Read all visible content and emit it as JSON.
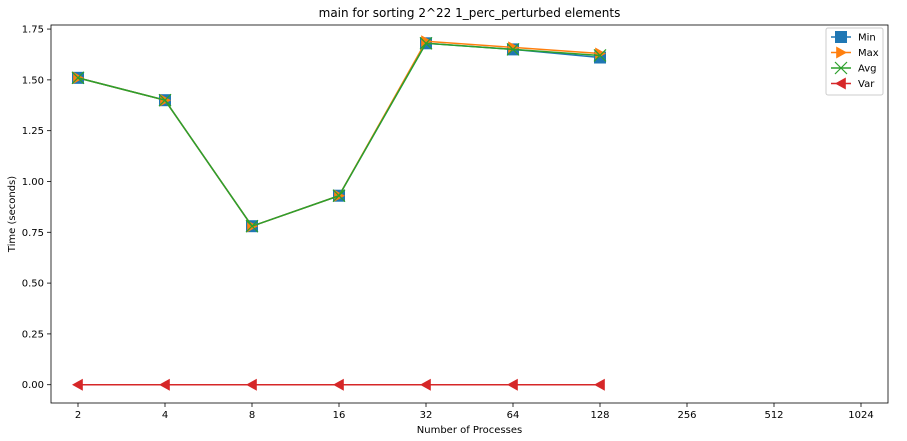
{
  "chart_data": {
    "type": "line",
    "title": "main for sorting 2^22 1_perc_perturbed elements",
    "xlabel": "Number of Processes",
    "ylabel": "Time (seconds)",
    "x_scale": "log2",
    "categories": [
      "2",
      "4",
      "8",
      "16",
      "32",
      "64",
      "128",
      "256",
      "512",
      "1024"
    ],
    "x": [
      2,
      4,
      8,
      16,
      32,
      64,
      128
    ],
    "ylim": [
      -0.09,
      1.77
    ],
    "yticks": [
      "0.00",
      "0.25",
      "0.50",
      "0.75",
      "1.00",
      "1.25",
      "1.50",
      "1.75"
    ],
    "grid": false,
    "legend_position": "top-right",
    "series": [
      {
        "name": "Min",
        "color": "#1f77b4",
        "marker": "square",
        "values": [
          1.51,
          1.4,
          0.78,
          0.93,
          1.68,
          1.65,
          1.61
        ]
      },
      {
        "name": "Max",
        "color": "#ff7f0e",
        "marker": "triangle-right",
        "values": [
          1.51,
          1.4,
          0.78,
          0.93,
          1.69,
          1.66,
          1.63
        ]
      },
      {
        "name": "Avg",
        "color": "#2ca02c",
        "marker": "x",
        "values": [
          1.51,
          1.4,
          0.78,
          0.93,
          1.68,
          1.65,
          1.62
        ]
      },
      {
        "name": "Var",
        "color": "#d62728",
        "marker": "triangle-left",
        "values": [
          0.0,
          0.0,
          0.0,
          0.0,
          0.0,
          0.0,
          0.0
        ]
      }
    ]
  }
}
